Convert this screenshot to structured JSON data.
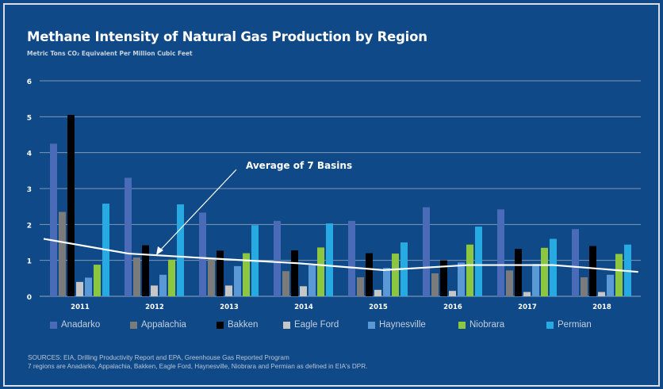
{
  "chart_data": {
    "type": "bar",
    "title": "Methane Intensity of Natural Gas Production by Region",
    "subtitle": "Metric Tons CO₂ Equivalent Per Million Cubic Feet",
    "categories": [
      "2011",
      "2012",
      "2013",
      "2014",
      "2015",
      "2016",
      "2017",
      "2018"
    ],
    "ylim": [
      0,
      6
    ],
    "yticks": [
      "0",
      "1",
      "2",
      "3",
      "4",
      "5",
      "6"
    ],
    "grid": true,
    "legend_position": "bottom",
    "series": [
      {
        "name": "Anadarko",
        "color": "#4a6cb8",
        "values": [
          4.25,
          3.3,
          2.33,
          2.1,
          2.1,
          2.48,
          2.42,
          1.87
        ]
      },
      {
        "name": "Appalachia",
        "color": "#7b7b7b",
        "values": [
          2.35,
          1.08,
          1.05,
          0.7,
          0.53,
          0.64,
          0.72,
          0.53
        ]
      },
      {
        "name": "Bakken",
        "color": "#000000",
        "values": [
          5.05,
          1.42,
          1.27,
          1.28,
          1.2,
          1.0,
          1.32,
          1.4
        ]
      },
      {
        "name": "Eagle Ford",
        "color": "#c6c6c6",
        "values": [
          0.4,
          0.3,
          0.3,
          0.28,
          0.18,
          0.15,
          0.12,
          0.12
        ]
      },
      {
        "name": "Haynesville",
        "color": "#5b98d6",
        "values": [
          0.52,
          0.6,
          0.84,
          0.86,
          0.79,
          0.94,
          0.9,
          0.6
        ]
      },
      {
        "name": "Niobrara",
        "color": "#8dc63f",
        "values": [
          0.88,
          1.02,
          1.2,
          1.36,
          1.19,
          1.44,
          1.35,
          1.18
        ]
      },
      {
        "name": "Permian",
        "color": "#27a9e1",
        "values": [
          2.58,
          2.56,
          1.98,
          2.03,
          1.5,
          1.94,
          1.6,
          1.44
        ]
      }
    ],
    "average_line": {
      "label": "Average of 7 Basins",
      "color": "#ffffff",
      "values": [
        1.6,
        1.19,
        1.05,
        0.92,
        0.73,
        0.87,
        0.87,
        0.68
      ]
    }
  },
  "notes": {
    "sources": "SOURCES: EIA, Drilling Productivity Report and EPA, Greenhouse Gas Reported Program",
    "regions": "7 regions are Anadarko, Appalachia, Bakken, Eagle Ford, Haynesville, Niobrara and Permian as defined in EIA's DPR."
  }
}
